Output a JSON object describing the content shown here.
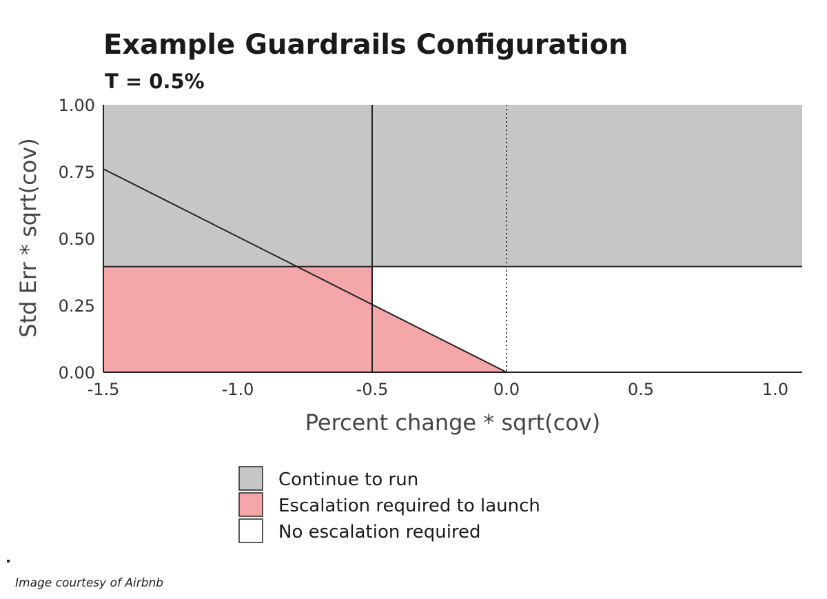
{
  "chart_data": {
    "type": "area",
    "title": "Example Guardrails Configuration",
    "subtitle": "T = 0.5%",
    "xlabel": "Percent change * sqrt(cov)",
    "ylabel": "Std Err * sqrt(cov)",
    "xlim": [
      -1.5,
      1.1
    ],
    "ylim": [
      0,
      1.0
    ],
    "x_ticks": [
      -1.5,
      -1.0,
      -0.5,
      0.0,
      0.5,
      1.0
    ],
    "x_tick_labels": [
      "-1.5",
      "-1.0",
      "-0.5",
      "0.0",
      "0.5",
      "1.0"
    ],
    "y_ticks": [
      0,
      0.25,
      0.5,
      0.75,
      1.0
    ],
    "y_tick_labels": [
      "0.00",
      "0.25",
      "0.50",
      "0.75",
      "1.00"
    ],
    "horizontal_threshold": 0.395,
    "vertical_threshold": -0.5,
    "diagonal_line": {
      "x": [
        -1.5,
        0.0
      ],
      "y": [
        0.76,
        0.0
      ]
    },
    "dotted_reference_x": 0.0,
    "regions": [
      {
        "label": "Continue to run",
        "color": "#c6c6c6"
      },
      {
        "label": "Escalation required to launch",
        "color": "#f4a6a8"
      },
      {
        "label": "No escalation required",
        "color": "#ffffff"
      }
    ],
    "grid": false,
    "legend_position": "bottom"
  },
  "footer": {
    "bullet": "•",
    "caption": "Image courtesy of Airbnb"
  }
}
